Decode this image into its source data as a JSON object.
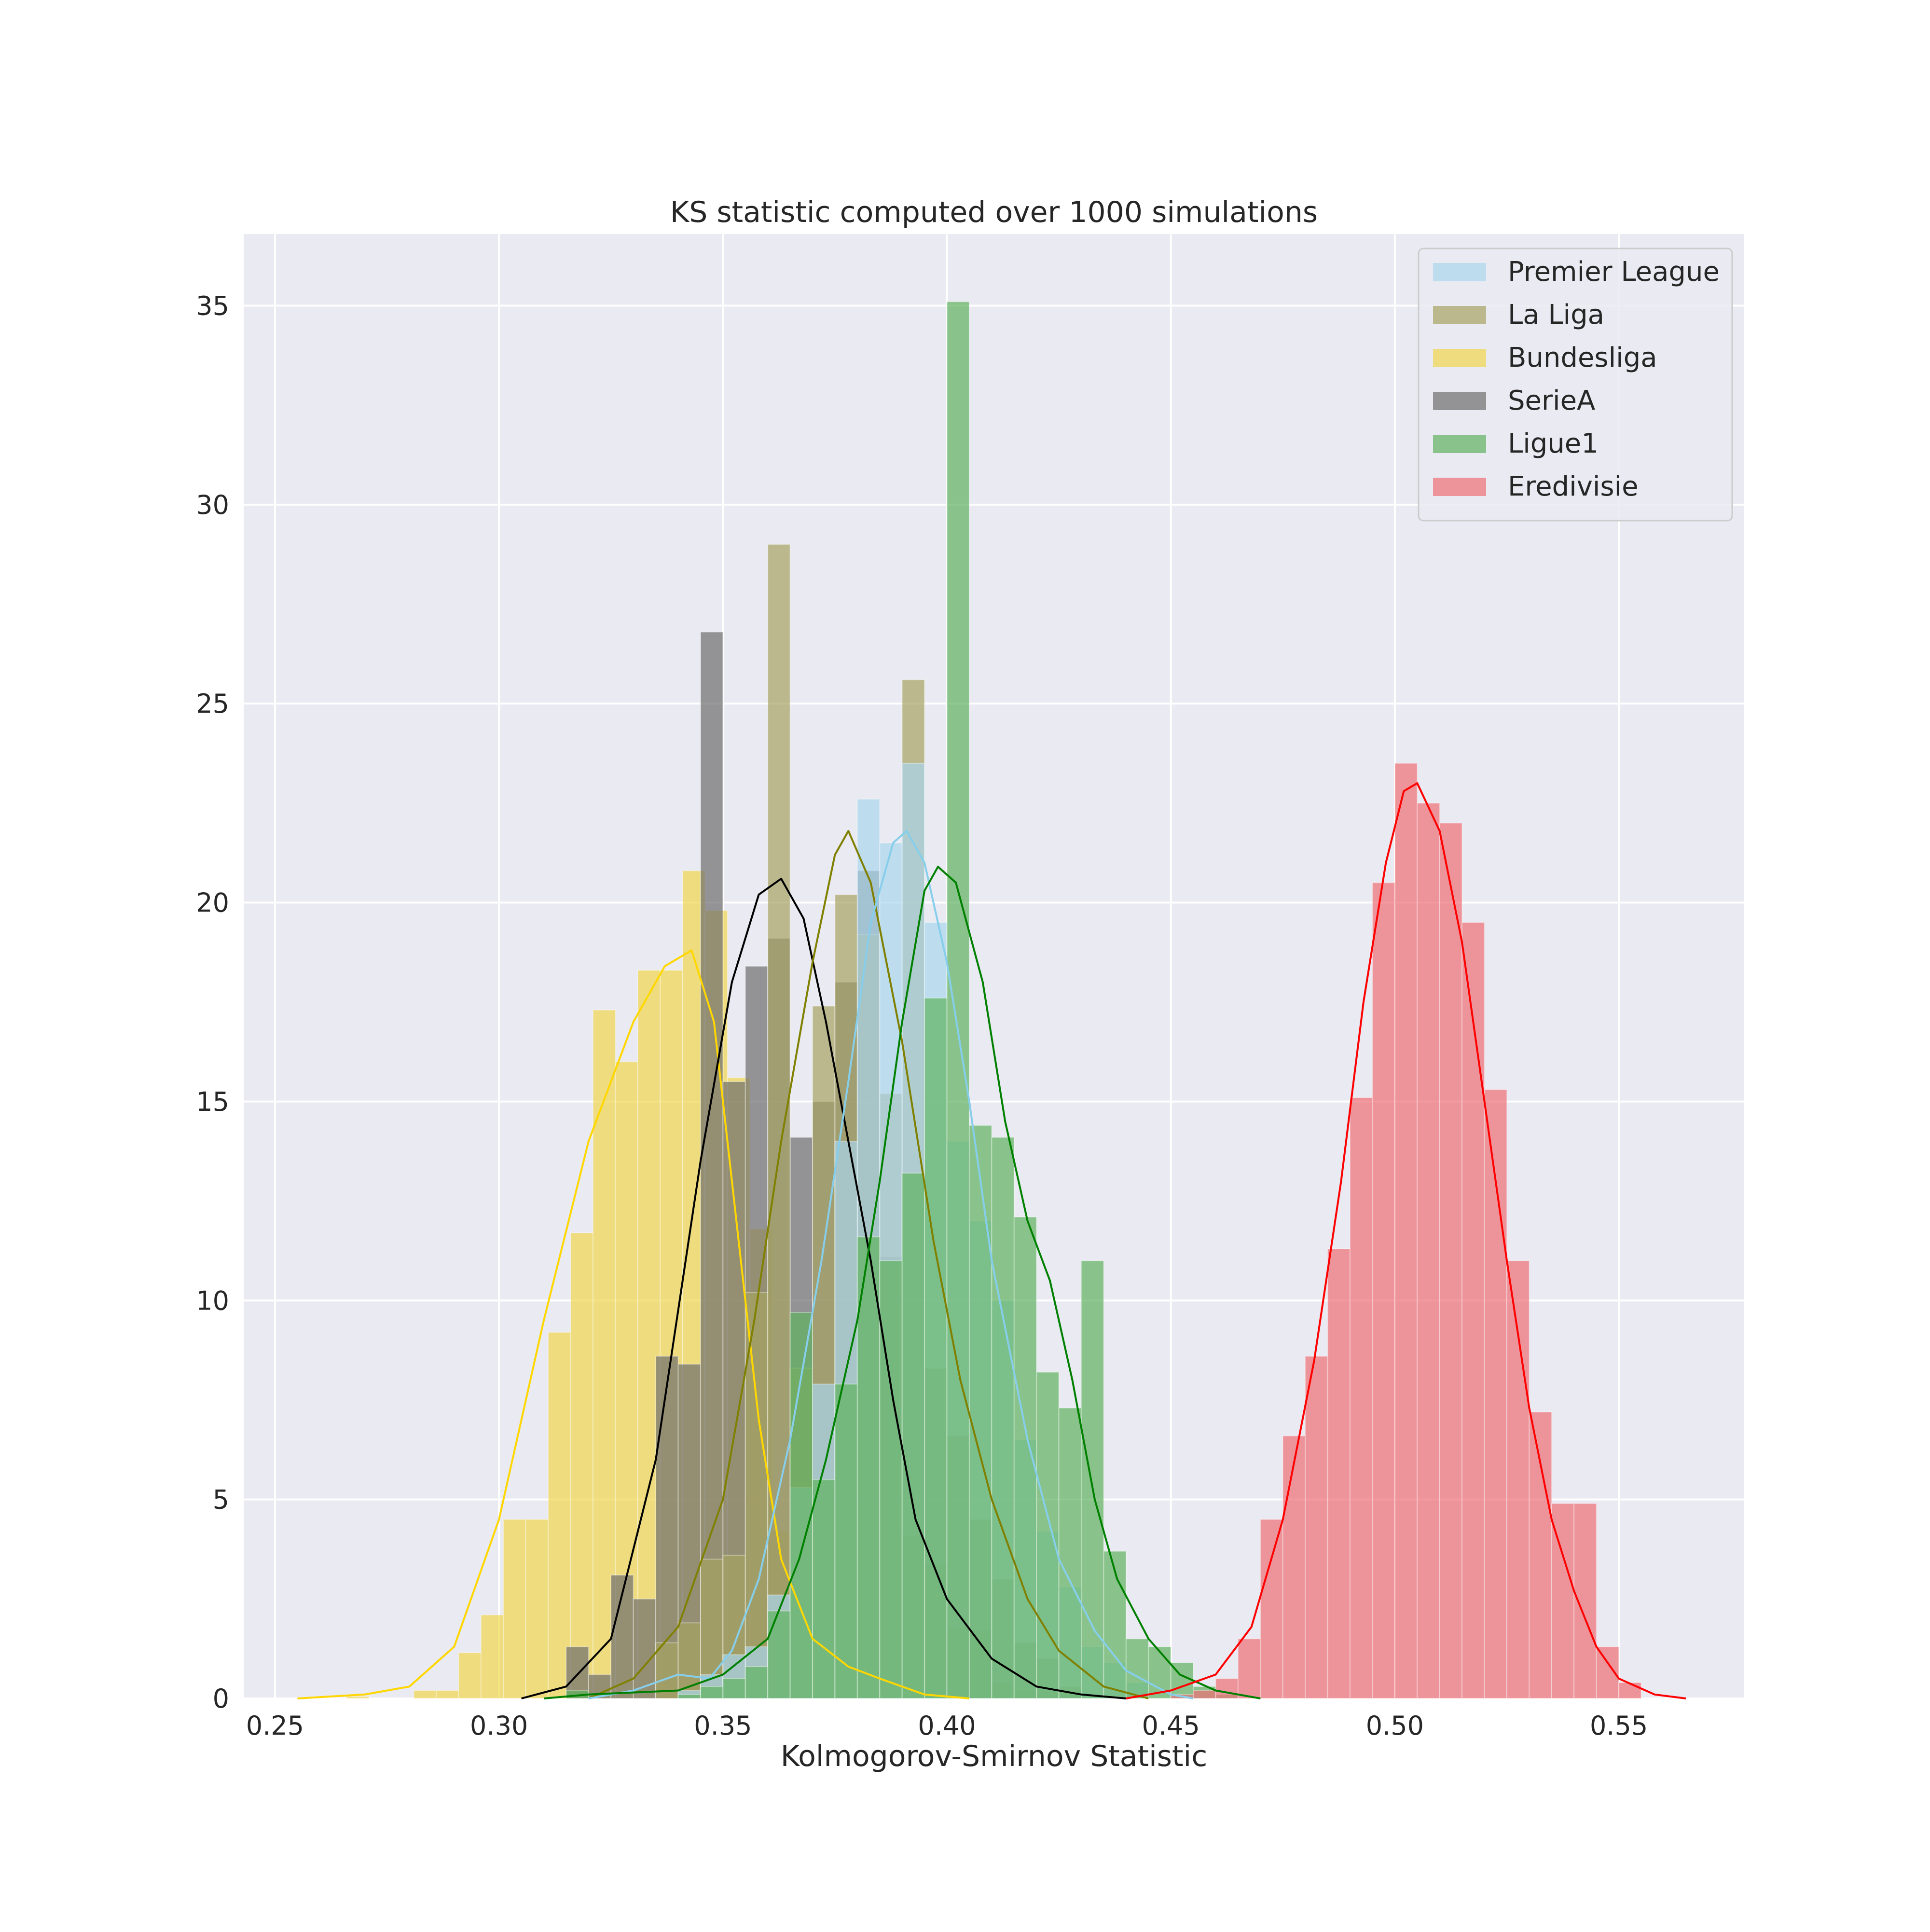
{
  "chart_data": {
    "type": "bar",
    "title": "KS statistic computed over 1000 simulations",
    "xlabel": "Kolmogorov-Smirnov Statistic",
    "ylabel": "",
    "xlim": [
      0.243,
      0.578
    ],
    "ylim": [
      0,
      36.8
    ],
    "xticks": [
      "0.25",
      "0.30",
      "0.35",
      "0.40",
      "0.45",
      "0.50",
      "0.55"
    ],
    "yticks": [
      "0",
      "5",
      "10",
      "15",
      "20",
      "25",
      "30",
      "35"
    ],
    "grid": true,
    "legend_position": "top-right",
    "background": "#eaeaf2",
    "series": [
      {
        "name": "Bundesliga",
        "color": "#f0d64e",
        "kde_color": "#ffd700",
        "bins": [
          [
            0.266,
            0.271,
            0.05
          ],
          [
            0.281,
            0.286,
            0.2
          ],
          [
            0.286,
            0.291,
            0.2
          ],
          [
            0.291,
            0.296,
            1.15
          ],
          [
            0.296,
            0.301,
            2.1
          ],
          [
            0.301,
            0.306,
            4.5
          ],
          [
            0.306,
            0.311,
            4.5
          ],
          [
            0.311,
            0.316,
            9.2
          ],
          [
            0.316,
            0.321,
            11.7
          ],
          [
            0.321,
            0.326,
            17.3
          ],
          [
            0.326,
            0.331,
            16.0
          ],
          [
            0.331,
            0.336,
            18.3
          ],
          [
            0.336,
            0.341,
            18.3
          ],
          [
            0.341,
            0.346,
            20.8
          ],
          [
            0.346,
            0.351,
            19.8
          ],
          [
            0.351,
            0.356,
            15.6
          ],
          [
            0.356,
            0.361,
            11.8
          ],
          [
            0.361,
            0.366,
            4.2
          ],
          [
            0.366,
            0.371,
            2.6
          ],
          [
            0.371,
            0.376,
            1.4
          ],
          [
            0.376,
            0.381,
            0.9
          ],
          [
            0.381,
            0.386,
            0.7
          ],
          [
            0.386,
            0.391,
            0.4
          ]
        ],
        "kde": [
          [
            0.255,
            0.0
          ],
          [
            0.27,
            0.1
          ],
          [
            0.28,
            0.3
          ],
          [
            0.29,
            1.3
          ],
          [
            0.3,
            4.5
          ],
          [
            0.31,
            9.5
          ],
          [
            0.32,
            14.0
          ],
          [
            0.33,
            17.0
          ],
          [
            0.337,
            18.4
          ],
          [
            0.343,
            18.8
          ],
          [
            0.348,
            17.0
          ],
          [
            0.353,
            12.0
          ],
          [
            0.358,
            7.0
          ],
          [
            0.363,
            3.5
          ],
          [
            0.37,
            1.5
          ],
          [
            0.378,
            0.8
          ],
          [
            0.385,
            0.5
          ],
          [
            0.395,
            0.1
          ],
          [
            0.405,
            0.0
          ]
        ]
      },
      {
        "name": "SerieA",
        "color": "#6d6d6d",
        "kde_color": "#000000",
        "bins": [
          [
            0.315,
            0.32,
            1.3
          ],
          [
            0.32,
            0.325,
            0.6
          ],
          [
            0.325,
            0.33,
            3.1
          ],
          [
            0.33,
            0.335,
            2.5
          ],
          [
            0.335,
            0.34,
            8.6
          ],
          [
            0.34,
            0.345,
            8.4
          ],
          [
            0.345,
            0.35,
            26.8
          ],
          [
            0.35,
            0.355,
            15.5
          ],
          [
            0.355,
            0.36,
            18.4
          ],
          [
            0.36,
            0.365,
            19.1
          ],
          [
            0.365,
            0.37,
            14.1
          ],
          [
            0.37,
            0.375,
            15.0
          ],
          [
            0.375,
            0.38,
            18.0
          ],
          [
            0.38,
            0.385,
            20.8
          ],
          [
            0.385,
            0.39,
            11.1
          ],
          [
            0.39,
            0.395,
            4.1
          ],
          [
            0.395,
            0.4,
            3.4
          ],
          [
            0.4,
            0.405,
            1.8
          ],
          [
            0.405,
            0.41,
            1.7
          ],
          [
            0.41,
            0.415,
            0.4
          ],
          [
            0.415,
            0.42,
            0.2
          ],
          [
            0.42,
            0.425,
            0.2
          ],
          [
            0.425,
            0.43,
            0.2
          ]
        ],
        "kde": [
          [
            0.305,
            0.0
          ],
          [
            0.315,
            0.3
          ],
          [
            0.325,
            1.5
          ],
          [
            0.335,
            6.0
          ],
          [
            0.345,
            13.5
          ],
          [
            0.352,
            18.0
          ],
          [
            0.358,
            20.2
          ],
          [
            0.363,
            20.6
          ],
          [
            0.368,
            19.6
          ],
          [
            0.373,
            17.0
          ],
          [
            0.378,
            14.0
          ],
          [
            0.383,
            11.0
          ],
          [
            0.388,
            7.5
          ],
          [
            0.393,
            4.5
          ],
          [
            0.4,
            2.5
          ],
          [
            0.41,
            1.0
          ],
          [
            0.42,
            0.3
          ],
          [
            0.43,
            0.1
          ],
          [
            0.44,
            0.0
          ]
        ]
      },
      {
        "name": "La Liga",
        "color": "#a7a363",
        "kde_color": "#808000",
        "bins": [
          [
            0.335,
            0.34,
            1.4
          ],
          [
            0.34,
            0.345,
            1.9
          ],
          [
            0.345,
            0.35,
            3.5
          ],
          [
            0.35,
            0.355,
            3.6
          ],
          [
            0.355,
            0.36,
            10.2
          ],
          [
            0.36,
            0.365,
            29.0
          ],
          [
            0.365,
            0.37,
            8.3
          ],
          [
            0.37,
            0.375,
            17.4
          ],
          [
            0.375,
            0.38,
            20.2
          ],
          [
            0.38,
            0.385,
            19.2
          ],
          [
            0.385,
            0.39,
            15.2
          ],
          [
            0.39,
            0.395,
            25.6
          ],
          [
            0.395,
            0.4,
            8.3
          ],
          [
            0.4,
            0.405,
            6.6
          ],
          [
            0.405,
            0.41,
            4.5
          ],
          [
            0.41,
            0.415,
            3.0
          ],
          [
            0.415,
            0.42,
            1.4
          ],
          [
            0.42,
            0.425,
            1.0
          ],
          [
            0.425,
            0.43,
            0.3
          ]
        ],
        "kde": [
          [
            0.32,
            0.0
          ],
          [
            0.33,
            0.5
          ],
          [
            0.34,
            1.8
          ],
          [
            0.35,
            5.0
          ],
          [
            0.357,
            9.5
          ],
          [
            0.363,
            14.0
          ],
          [
            0.37,
            18.5
          ],
          [
            0.375,
            21.2
          ],
          [
            0.378,
            21.8
          ],
          [
            0.383,
            20.5
          ],
          [
            0.39,
            16.5
          ],
          [
            0.397,
            11.5
          ],
          [
            0.403,
            8.0
          ],
          [
            0.41,
            5.0
          ],
          [
            0.418,
            2.5
          ],
          [
            0.425,
            1.2
          ],
          [
            0.435,
            0.3
          ],
          [
            0.445,
            0.0
          ]
        ]
      },
      {
        "name": "Premier League",
        "color": "#aad6ec",
        "kde_color": "#87ceeb",
        "bins": [
          [
            0.34,
            0.345,
            0.2
          ],
          [
            0.345,
            0.35,
            0.6
          ],
          [
            0.35,
            0.355,
            1.1
          ],
          [
            0.355,
            0.36,
            1.3
          ],
          [
            0.36,
            0.365,
            2.6
          ],
          [
            0.365,
            0.37,
            5.3
          ],
          [
            0.37,
            0.375,
            7.9
          ],
          [
            0.375,
            0.38,
            14.0
          ],
          [
            0.38,
            0.385,
            22.6
          ],
          [
            0.385,
            0.39,
            21.5
          ],
          [
            0.39,
            0.395,
            23.5
          ],
          [
            0.395,
            0.4,
            19.5
          ],
          [
            0.4,
            0.405,
            14.0
          ],
          [
            0.405,
            0.41,
            12.0
          ],
          [
            0.41,
            0.415,
            10.0
          ],
          [
            0.415,
            0.42,
            6.5
          ],
          [
            0.42,
            0.425,
            4.2
          ],
          [
            0.425,
            0.43,
            2.8
          ],
          [
            0.43,
            0.435,
            1.3
          ],
          [
            0.435,
            0.44,
            0.9
          ],
          [
            0.44,
            0.445,
            0.4
          ]
        ],
        "kde": [
          [
            0.32,
            0.0
          ],
          [
            0.33,
            0.2
          ],
          [
            0.34,
            0.6
          ],
          [
            0.347,
            0.5
          ],
          [
            0.352,
            1.2
          ],
          [
            0.358,
            3.0
          ],
          [
            0.365,
            6.5
          ],
          [
            0.372,
            11.0
          ],
          [
            0.378,
            15.5
          ],
          [
            0.383,
            19.5
          ],
          [
            0.388,
            21.5
          ],
          [
            0.391,
            21.8
          ],
          [
            0.395,
            21.0
          ],
          [
            0.4,
            18.5
          ],
          [
            0.405,
            15.0
          ],
          [
            0.41,
            11.0
          ],
          [
            0.418,
            6.5
          ],
          [
            0.425,
            3.5
          ],
          [
            0.433,
            1.7
          ],
          [
            0.44,
            0.7
          ],
          [
            0.45,
            0.1
          ],
          [
            0.455,
            0.0
          ]
        ]
      },
      {
        "name": "Ligue1",
        "color": "#5fb25f",
        "kde_color": "#008000",
        "bins": [
          [
            0.315,
            0.32,
            0.2
          ],
          [
            0.34,
            0.345,
            0.1
          ],
          [
            0.345,
            0.35,
            0.3
          ],
          [
            0.35,
            0.355,
            0.5
          ],
          [
            0.355,
            0.36,
            0.8
          ],
          [
            0.36,
            0.365,
            2.2
          ],
          [
            0.365,
            0.37,
            9.7
          ],
          [
            0.37,
            0.375,
            5.5
          ],
          [
            0.375,
            0.38,
            7.9
          ],
          [
            0.38,
            0.385,
            11.6
          ],
          [
            0.385,
            0.39,
            11.0
          ],
          [
            0.39,
            0.395,
            13.2
          ],
          [
            0.395,
            0.4,
            17.6
          ],
          [
            0.4,
            0.405,
            35.1
          ],
          [
            0.405,
            0.41,
            14.4
          ],
          [
            0.41,
            0.415,
            14.1
          ],
          [
            0.415,
            0.42,
            12.1
          ],
          [
            0.42,
            0.425,
            8.2
          ],
          [
            0.425,
            0.43,
            7.3
          ],
          [
            0.43,
            0.435,
            11.0
          ],
          [
            0.435,
            0.44,
            3.7
          ],
          [
            0.44,
            0.445,
            1.5
          ],
          [
            0.445,
            0.45,
            1.3
          ],
          [
            0.45,
            0.455,
            0.9
          ],
          [
            0.455,
            0.46,
            0.3
          ],
          [
            0.46,
            0.465,
            0.1
          ]
        ],
        "kde": [
          [
            0.31,
            0.0
          ],
          [
            0.32,
            0.1
          ],
          [
            0.34,
            0.2
          ],
          [
            0.35,
            0.6
          ],
          [
            0.36,
            1.5
          ],
          [
            0.367,
            3.5
          ],
          [
            0.373,
            6.0
          ],
          [
            0.38,
            9.5
          ],
          [
            0.385,
            13.0
          ],
          [
            0.39,
            17.0
          ],
          [
            0.395,
            20.3
          ],
          [
            0.398,
            20.9
          ],
          [
            0.402,
            20.5
          ],
          [
            0.408,
            18.0
          ],
          [
            0.413,
            14.5
          ],
          [
            0.418,
            12.0
          ],
          [
            0.423,
            10.5
          ],
          [
            0.428,
            8.0
          ],
          [
            0.433,
            5.0
          ],
          [
            0.438,
            3.0
          ],
          [
            0.445,
            1.5
          ],
          [
            0.452,
            0.6
          ],
          [
            0.46,
            0.2
          ],
          [
            0.47,
            0.0
          ]
        ]
      },
      {
        "name": "Eredivisie",
        "color": "#ee6f76",
        "kde_color": "#ff0000",
        "bins": [
          [
            0.45,
            0.455,
            0.1
          ],
          [
            0.455,
            0.46,
            0.2
          ],
          [
            0.46,
            0.465,
            0.5
          ],
          [
            0.465,
            0.47,
            1.5
          ],
          [
            0.47,
            0.475,
            4.5
          ],
          [
            0.475,
            0.48,
            6.6
          ],
          [
            0.48,
            0.485,
            8.6
          ],
          [
            0.485,
            0.49,
            11.3
          ],
          [
            0.49,
            0.495,
            15.1
          ],
          [
            0.495,
            0.5,
            20.5
          ],
          [
            0.5,
            0.505,
            23.5
          ],
          [
            0.505,
            0.51,
            22.5
          ],
          [
            0.51,
            0.515,
            22.0
          ],
          [
            0.515,
            0.52,
            19.5
          ],
          [
            0.52,
            0.525,
            15.3
          ],
          [
            0.525,
            0.53,
            11.0
          ],
          [
            0.53,
            0.535,
            7.2
          ],
          [
            0.535,
            0.54,
            4.9
          ],
          [
            0.54,
            0.545,
            4.9
          ],
          [
            0.545,
            0.55,
            1.3
          ],
          [
            0.55,
            0.555,
            0.4
          ]
        ],
        "kde": [
          [
            0.44,
            0.0
          ],
          [
            0.45,
            0.2
          ],
          [
            0.46,
            0.6
          ],
          [
            0.468,
            1.8
          ],
          [
            0.475,
            4.5
          ],
          [
            0.482,
            8.5
          ],
          [
            0.488,
            13.0
          ],
          [
            0.493,
            17.5
          ],
          [
            0.498,
            21.0
          ],
          [
            0.502,
            22.8
          ],
          [
            0.505,
            23.0
          ],
          [
            0.51,
            21.8
          ],
          [
            0.515,
            19.0
          ],
          [
            0.52,
            15.0
          ],
          [
            0.525,
            11.0
          ],
          [
            0.53,
            7.3
          ],
          [
            0.535,
            4.5
          ],
          [
            0.54,
            2.7
          ],
          [
            0.545,
            1.3
          ],
          [
            0.55,
            0.5
          ],
          [
            0.558,
            0.1
          ],
          [
            0.565,
            0.0
          ]
        ]
      }
    ],
    "legend_order": [
      "Premier League",
      "La Liga",
      "Bundesliga",
      "SerieA",
      "Ligue1",
      "Eredivisie"
    ]
  }
}
